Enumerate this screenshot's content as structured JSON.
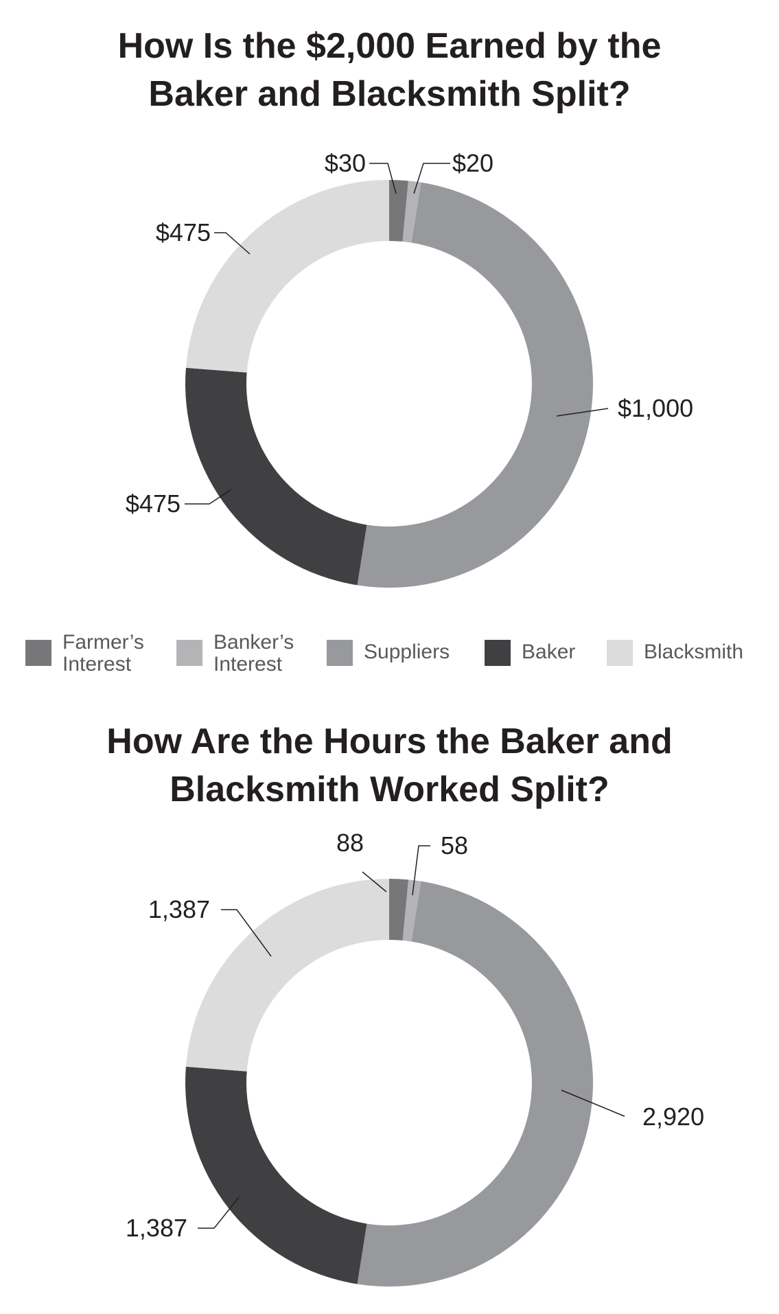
{
  "chart_data": [
    {
      "type": "pie",
      "donut": true,
      "title_lines": [
        "How Is the $2,000 Earned by the",
        "Baker and Blacksmith Split?"
      ],
      "categories": [
        "Farmer’s Interest",
        "Banker’s Interest",
        "Suppliers",
        "Baker",
        "Blacksmith"
      ],
      "values": [
        30,
        20,
        1000,
        475,
        475
      ],
      "labels": [
        "$30",
        "$20",
        "$1,000",
        "$475",
        "$475"
      ],
      "colors": [
        "#77777a",
        "#b4b4b6",
        "#98999c",
        "#404042",
        "#dcdcdd"
      ],
      "legend_position": "bottom"
    },
    {
      "type": "pie",
      "donut": true,
      "title_lines": [
        "How Are the Hours the Baker and",
        "Blacksmith Worked Split?"
      ],
      "categories": [
        "Farmer’s Interest",
        "Banker’s Interest",
        "Suppliers",
        "Baker",
        "Blacksmith"
      ],
      "values": [
        88,
        58,
        2920,
        1387,
        1387
      ],
      "labels": [
        "88",
        "58",
        "2,920",
        "1,387",
        "1,387"
      ],
      "colors": [
        "#77777a",
        "#b4b4b6",
        "#98999c",
        "#404042",
        "#dcdcdd"
      ]
    }
  ],
  "legend": {
    "items": [
      {
        "lines": [
          "Farmer’s",
          "Interest"
        ],
        "color": "#77777a"
      },
      {
        "lines": [
          "Banker’s",
          "Interest"
        ],
        "color": "#b4b4b6"
      },
      {
        "lines": [
          "Suppliers"
        ],
        "color": "#98999c"
      },
      {
        "lines": [
          "Baker"
        ],
        "color": "#404042"
      },
      {
        "lines": [
          "Blacksmith"
        ],
        "color": "#dcdcdd"
      }
    ]
  }
}
